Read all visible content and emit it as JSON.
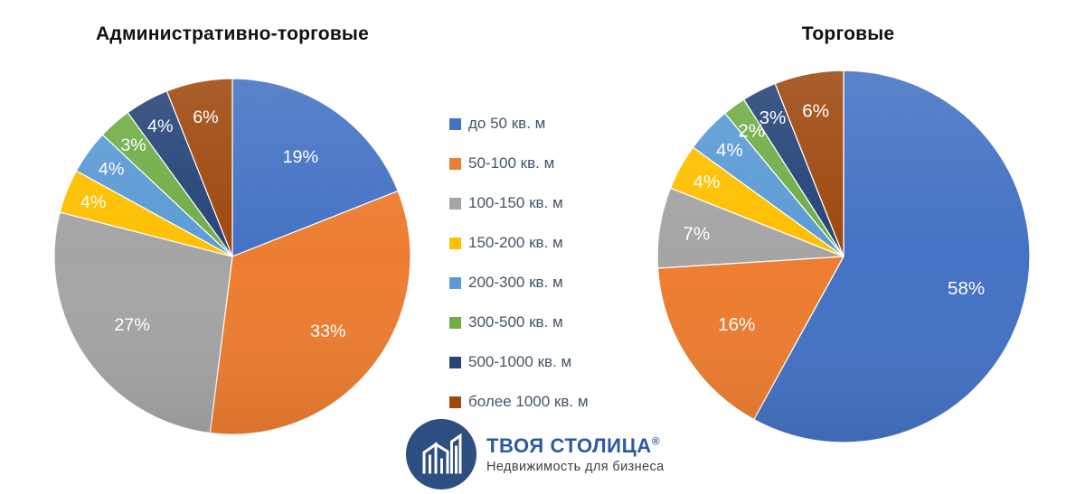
{
  "page": {
    "background": "#ffffff"
  },
  "chart_data": [
    {
      "type": "pie",
      "title": "Административно-торговые",
      "categories": [
        "до 50 кв. м",
        "50-100 кв. м",
        "100-150 кв. м",
        "150-200 кв. м",
        "200-300 кв. м",
        "300-500 кв. м",
        "500-1000 кв. м",
        "более 1000 кв. м"
      ],
      "values": [
        19,
        33,
        27,
        4,
        4,
        3,
        4,
        6
      ],
      "unit": "%",
      "colors": [
        "#4472C4",
        "#ED7D31",
        "#A5A5A5",
        "#FFC000",
        "#5B9BD5",
        "#70AD47",
        "#264478",
        "#9E480E"
      ],
      "label_color": "#FFFFFF",
      "start_angle_deg": 0,
      "direction": "clockwise",
      "data_labels": "inside-percent"
    },
    {
      "type": "pie",
      "title": "Торговые",
      "categories": [
        "до 50 кв. м",
        "50-100 кв. м",
        "100-150 кв. м",
        "150-200 кв. м",
        "200-300 кв. м",
        "300-500 кв. м",
        "500-1000 кв. м",
        "более 1000 кв. м"
      ],
      "values": [
        58,
        16,
        7,
        4,
        4,
        2,
        3,
        6
      ],
      "unit": "%",
      "colors": [
        "#4472C4",
        "#ED7D31",
        "#A5A5A5",
        "#FFC000",
        "#5B9BD5",
        "#70AD47",
        "#264478",
        "#9E480E"
      ],
      "label_color": "#FFFFFF",
      "start_angle_deg": 0,
      "direction": "clockwise",
      "data_labels": "inside-percent"
    }
  ],
  "legend": {
    "position": "center-between-charts",
    "text_color": "#44546A",
    "items": [
      {
        "label": "до 50 кв. м",
        "color": "#4472C4"
      },
      {
        "label": "50-100 кв. м",
        "color": "#ED7D31"
      },
      {
        "label": "100-150 кв. м",
        "color": "#A5A5A5"
      },
      {
        "label": "150-200 кв. м",
        "color": "#FFC000"
      },
      {
        "label": "200-300 кв. м",
        "color": "#5B9BD5"
      },
      {
        "label": "300-500 кв. м",
        "color": "#70AD47"
      },
      {
        "label": "500-1000 кв. м",
        "color": "#264478"
      },
      {
        "label": "более 1000 кв. м",
        "color": "#9E480E"
      }
    ]
  },
  "logo": {
    "brand": "ТВОЯ СТОЛИЦА",
    "trademark": "®",
    "tagline": "Недвижимость для бизнеса",
    "brand_color": "#2B5AA2",
    "tagline_color": "#3A4149",
    "icon": "buildings-in-circle",
    "icon_circle_color": "#2D4E80"
  }
}
